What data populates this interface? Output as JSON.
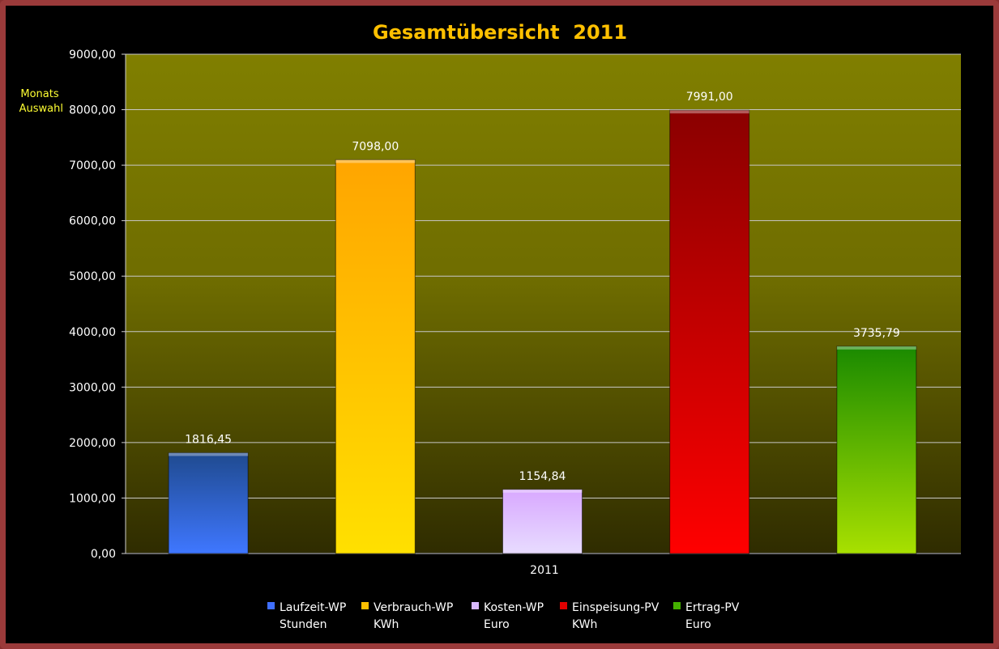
{
  "side_label": {
    "line1": "Monats",
    "line2": "Auswahl"
  },
  "chart_data": {
    "type": "bar",
    "title": "Gesamtübersicht  2011",
    "x_category": "2011",
    "ylim": [
      0,
      9000
    ],
    "y_ticks": [
      0,
      1000,
      2000,
      3000,
      4000,
      5000,
      6000,
      7000,
      8000,
      9000
    ],
    "y_tick_labels": [
      "0,00",
      "1000,00",
      "2000,00",
      "3000,00",
      "4000,00",
      "5000,00",
      "6000,00",
      "7000,00",
      "8000,00",
      "9000,00"
    ],
    "grid": true,
    "legend_position": "bottom",
    "series": [
      {
        "name": "Laufzeit-WP",
        "unit": "Stunden",
        "value": 1816.45,
        "label": "1816,45",
        "color_top": "#1f4a8f",
        "color_bottom": "#3f77ff",
        "legend_color": "#3f6fff"
      },
      {
        "name": "Verbrauch-WP",
        "unit": "KWh",
        "value": 7098.0,
        "label": "7098,00",
        "color_top": "#ffa500",
        "color_bottom": "#ffe000",
        "legend_color": "#ffc000"
      },
      {
        "name": "Kosten-WP",
        "unit": "Euro",
        "value": 1154.84,
        "label": "1154,84",
        "color_top": "#d8a8ff",
        "color_bottom": "#e8dcff",
        "legend_color": "#d8b8ff"
      },
      {
        "name": "Einspeisung-PV",
        "unit": "KWh",
        "value": 7991.0,
        "label": "7991,00",
        "color_top": "#8a0000",
        "color_bottom": "#ff0000",
        "legend_color": "#e00000"
      },
      {
        "name": "Ertrag-PV",
        "unit": "Euro",
        "value": 3735.79,
        "label": "3735,79",
        "color_top": "#1a8a00",
        "color_bottom": "#a8e000",
        "legend_color": "#44b000"
      }
    ]
  }
}
